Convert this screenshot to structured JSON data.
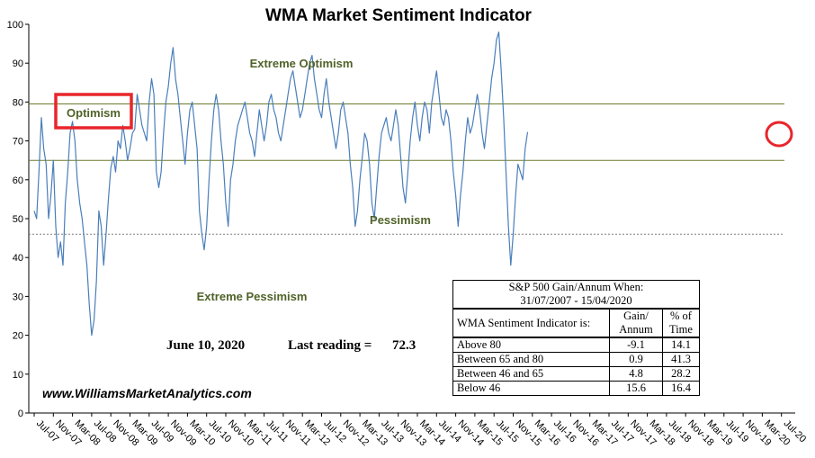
{
  "chart_data": {
    "type": "line",
    "title": "WMA Market Sentiment Indicator",
    "ylim": [
      0,
      100
    ],
    "yticks": [
      0,
      10,
      20,
      30,
      40,
      50,
      60,
      70,
      80,
      90,
      100
    ],
    "xtick_labels": [
      "Jul-07",
      "Nov-07",
      "Mar-08",
      "Jul-08",
      "Nov-08",
      "Mar-09",
      "Jul-09",
      "Nov-09",
      "Mar-10",
      "Jul-10",
      "Nov-10",
      "Mar-11",
      "Jul-11",
      "Nov-11",
      "Mar-12",
      "Jul-12",
      "Nov-12",
      "Mar-13",
      "Jul-13",
      "Nov-13",
      "Mar-14",
      "Jul-14",
      "Nov-14",
      "Mar-15",
      "Jul-15",
      "Nov-15",
      "Mar-16",
      "Jul-16",
      "Nov-16",
      "Mar-17",
      "Jul-17",
      "Nov-17",
      "Mar-18",
      "Jul-18",
      "Nov-18",
      "Mar-19",
      "Jul-19",
      "Nov-19",
      "Mar-20",
      "Jul-20"
    ],
    "thresholds": [
      {
        "value": 79.5,
        "style": "solid",
        "color": "#6b7a2a"
      },
      {
        "value": 65,
        "style": "solid",
        "color": "#6b7a2a"
      },
      {
        "value": 46,
        "style": "dotted",
        "color": "#7f7f7f"
      }
    ],
    "zone_labels": [
      "Extreme Optimism",
      "Optimism",
      "Pessimism",
      "Extreme Pessimism"
    ],
    "series": [
      {
        "name": "WMA Sentiment",
        "color": "#4a7ebb",
        "x_start": "Jul-07",
        "step_months": 0.5,
        "values": [
          52,
          50,
          62,
          76,
          68,
          64,
          50,
          56,
          65,
          48,
          40,
          44,
          38,
          54,
          62,
          72,
          75,
          70,
          60,
          54,
          50,
          44,
          38,
          28,
          20,
          24,
          34,
          52,
          48,
          38,
          46,
          55,
          63,
          66,
          62,
          70,
          68,
          74,
          70,
          65,
          68,
          72,
          73,
          82,
          78,
          74,
          72,
          70,
          80,
          86,
          82,
          62,
          58,
          62,
          72,
          80,
          84,
          90,
          94,
          86,
          82,
          76,
          70,
          64,
          72,
          78,
          80,
          74,
          68,
          52,
          46,
          42,
          48,
          60,
          70,
          78,
          82,
          78,
          70,
          64,
          54,
          48,
          60,
          64,
          70,
          74,
          76,
          78,
          80,
          76,
          72,
          70,
          66,
          72,
          78,
          74,
          70,
          74,
          80,
          82,
          78,
          76,
          72,
          70,
          74,
          78,
          82,
          86,
          88,
          84,
          80,
          76,
          78,
          82,
          86,
          90,
          92,
          86,
          82,
          78,
          76,
          82,
          86,
          80,
          76,
          72,
          68,
          72,
          78,
          80,
          76,
          72,
          64,
          58,
          48,
          52,
          60,
          66,
          72,
          70,
          64,
          54,
          50,
          58,
          66,
          72,
          74,
          76,
          72,
          70,
          74,
          78,
          74,
          66,
          58,
          54,
          62,
          70,
          76,
          80,
          74,
          70,
          76,
          80,
          78,
          72,
          80,
          84,
          88,
          82,
          76,
          74,
          78,
          76,
          70,
          62,
          56,
          48,
          56,
          62,
          70,
          76,
          72,
          74,
          78,
          82,
          78,
          72,
          68,
          74,
          80,
          86,
          90,
          96,
          98,
          88,
          76,
          62,
          48,
          38,
          46,
          56,
          64,
          62,
          60,
          68,
          72.3
        ]
      }
    ]
  },
  "annotations": {
    "date_label": "June 10, 2020",
    "last_reading_label": "Last reading =",
    "last_reading_value": "72.3",
    "website": "www.WilliamsMarketAnalytics.com"
  },
  "stats_table": {
    "title_line1": "S&P 500 Gain/Annum When:",
    "title_line2": "31/07/2007 - 15/04/2020",
    "col_indicator": "WMA Sentiment Indicator is:",
    "col_gain_line1": "Gain/",
    "col_gain_line2": "Annum",
    "col_time_line1": "% of",
    "col_time_line2": "Time",
    "rows": [
      {
        "label": "Above 80",
        "gain": "-9.1",
        "time": "14.1"
      },
      {
        "label": "Between 65 and 80",
        "gain": "0.9",
        "time": "41.3"
      },
      {
        "label": "Between 46 and 65",
        "gain": "4.8",
        "time": "28.2"
      },
      {
        "label": "Below 46",
        "gain": "15.6",
        "time": "16.4"
      }
    ]
  },
  "highlight_colors": {
    "box": "#e8262c",
    "circle": "#e8262c"
  }
}
